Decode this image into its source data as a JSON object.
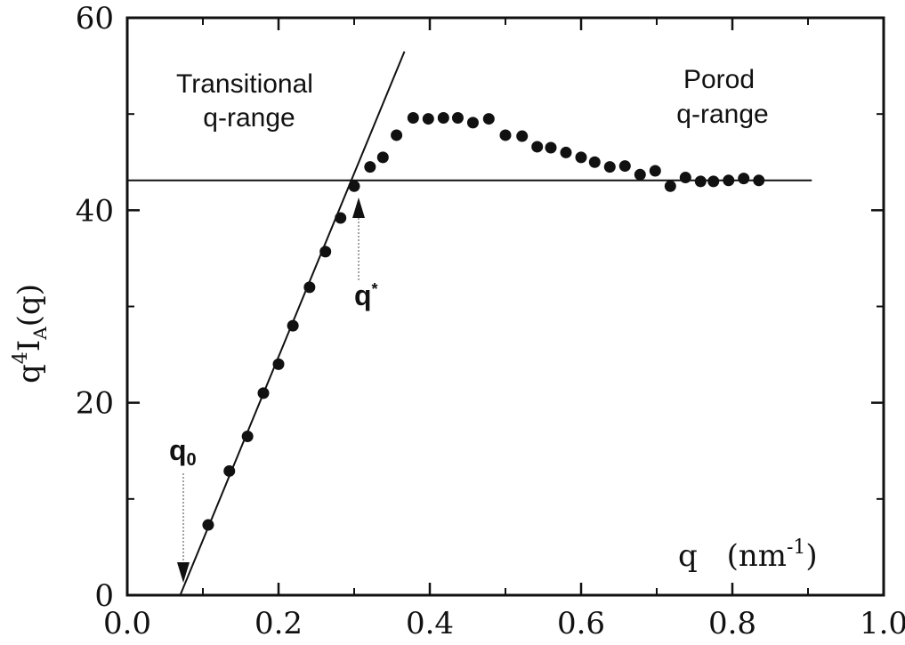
{
  "chart_data": {
    "type": "scatter",
    "title": "",
    "xlabel": "q",
    "xlabel_unit": "(nm",
    "xlabel_unit_sup": "-1",
    "xlabel_unit_close": ")",
    "ylabel_parts": {
      "base": "q",
      "sup": "4",
      "mid": "I",
      "sub": "A",
      "end": "(q)"
    },
    "xlim": [
      0.0,
      1.0
    ],
    "ylim": [
      0,
      60
    ],
    "xticks": [
      0.0,
      0.2,
      0.4,
      0.6,
      0.8,
      1.0
    ],
    "xtick_labels": [
      "0.0",
      "0.2",
      "0.4",
      "0.6",
      "0.8",
      "1.0"
    ],
    "yticks": [
      0,
      20,
      40,
      60
    ],
    "ytick_labels": [
      "0",
      "20",
      "40",
      "60"
    ],
    "grid": false,
    "series": [
      {
        "x": [
          0.107,
          0.135,
          0.159,
          0.18,
          0.2,
          0.219,
          0.241,
          0.262,
          0.282,
          0.3,
          0.321,
          0.338,
          0.356,
          0.378,
          0.398,
          0.418,
          0.437,
          0.457,
          0.478,
          0.5,
          0.522,
          0.542,
          0.56,
          0.58,
          0.6,
          0.618,
          0.638,
          0.658,
          0.678,
          0.698,
          0.718,
          0.738,
          0.758,
          0.775,
          0.795,
          0.815,
          0.835
        ],
        "y": [
          7.3,
          12.9,
          16.5,
          21.0,
          24.0,
          28.0,
          32.0,
          35.7,
          39.2,
          42.5,
          44.5,
          45.5,
          47.8,
          49.6,
          49.5,
          49.6,
          49.6,
          49.1,
          49.5,
          47.8,
          47.7,
          46.6,
          46.5,
          46.0,
          45.5,
          45.0,
          44.5,
          44.6,
          43.7,
          44.1,
          42.5,
          43.4,
          43.0,
          43.0,
          43.1,
          43.3,
          43.1
        ]
      }
    ],
    "fit_lines": [
      {
        "kind": "linear",
        "from": {
          "x": 0.07,
          "y": 0
        },
        "to": {
          "x": 0.3665,
          "y": 56.5
        }
      },
      {
        "kind": "horizontal",
        "y": 43.1,
        "x_range": [
          0.0,
          0.905
        ]
      }
    ],
    "annotations": {
      "transitional": [
        "Transitional",
        "q-range"
      ],
      "porod": [
        "Porod",
        "q-range"
      ],
      "q0": {
        "base": "q",
        "sub": "0",
        "x": 0.07,
        "y": 0
      },
      "qstar": {
        "base": "q",
        "sup": "*",
        "x": 0.3,
        "y": 43.1
      }
    }
  }
}
